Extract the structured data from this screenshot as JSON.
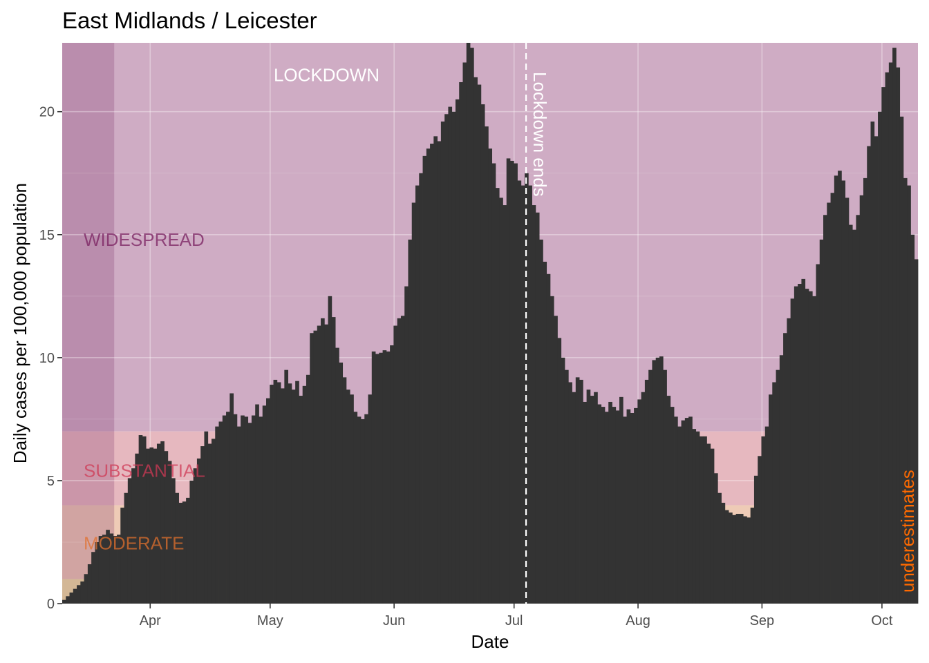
{
  "colors": {
    "bars": "#333333",
    "grid": "#ebebeb",
    "widespread": "#cfacc4",
    "substantial": "#e6b8bf",
    "moderate": "#eecbb6",
    "low": "#f1e5a5",
    "early_shade": "#7a3068",
    "widespread_text": "#7a2060",
    "substantial_text": "#cf3a55",
    "moderate_text": "#e0702e",
    "underestimates_text": "#ff6a00",
    "lockdown_text": "#ffffff"
  },
  "chart_data": {
    "type": "bar",
    "title": "East Midlands / Leicester",
    "xlabel": "Date",
    "ylabel": "Daily cases per 100,000 population",
    "x_start": "2021-03-10",
    "x_end": "2021-10-10",
    "ylim": [
      0,
      22.8
    ],
    "y_ticks": [
      0,
      5,
      10,
      15,
      20
    ],
    "x_ticks": [
      {
        "label": "Apr",
        "date": "2021-04-01"
      },
      {
        "label": "May",
        "date": "2021-05-01"
      },
      {
        "label": "Jun",
        "date": "2021-06-01"
      },
      {
        "label": "Jul",
        "date": "2021-07-01"
      },
      {
        "label": "Aug",
        "date": "2021-08-01"
      },
      {
        "label": "Sep",
        "date": "2021-09-01"
      },
      {
        "label": "Oct",
        "date": "2021-10-01"
      }
    ],
    "bands": [
      {
        "name": "WIDESPREAD",
        "from": 7,
        "to": 22.8
      },
      {
        "name": "SUBSTANTIAL",
        "from": 4,
        "to": 7
      },
      {
        "name": "MODERATE",
        "from": 1,
        "to": 4
      },
      {
        "name": "LOW",
        "from": 0,
        "to": 1
      }
    ],
    "band_labels": [
      "WIDESPREAD",
      "SUBSTANTIAL",
      "MODERATE"
    ],
    "early_shade_until": "2021-03-23",
    "annotations": {
      "lockdown": "LOCKDOWN",
      "lockdown_ends": "Lockdown ends",
      "lockdown_ends_date": "2021-07-04",
      "underestimates": "underestimates"
    },
    "values": [
      0.15,
      0.3,
      0.45,
      0.6,
      0.75,
      0.9,
      1.2,
      1.6,
      2.1,
      2.5,
      2.75,
      2.8,
      3.0,
      2.85,
      2.75,
      2.8,
      3.9,
      4.5,
      5.1,
      5.5,
      6.1,
      6.85,
      6.8,
      6.3,
      6.35,
      6.3,
      6.5,
      6.6,
      6.2,
      5.8,
      5.1,
      4.5,
      4.1,
      4.15,
      4.3,
      5.0,
      5.5,
      5.9,
      6.4,
      7.0,
      6.5,
      6.7,
      7.2,
      7.4,
      7.65,
      7.8,
      8.55,
      7.7,
      7.2,
      7.65,
      7.6,
      7.35,
      7.65,
      8.1,
      7.6,
      8.05,
      8.35,
      8.9,
      9.1,
      9.0,
      8.75,
      9.5,
      8.95,
      8.7,
      9.05,
      8.45,
      8.85,
      9.3,
      11.0,
      11.1,
      11.3,
      11.6,
      11.35,
      12.5,
      11.65,
      10.4,
      9.8,
      9.2,
      8.7,
      8.5,
      7.8,
      7.6,
      7.5,
      7.7,
      8.5,
      10.25,
      10.15,
      10.2,
      10.3,
      10.25,
      10.5,
      11.3,
      11.6,
      11.7,
      12.9,
      14.8,
      16.3,
      17.0,
      17.5,
      18.2,
      18.5,
      18.7,
      19.0,
      18.8,
      19.6,
      19.9,
      20.2,
      20.0,
      20.5,
      21.2,
      22.0,
      23.0,
      22.6,
      21.4,
      21.1,
      20.3,
      19.4,
      18.5,
      17.9,
      16.9,
      16.5,
      16.2,
      18.1,
      18.0,
      17.9,
      17.2,
      17.0,
      17.5,
      17.0,
      16.2,
      15.9,
      14.8,
      13.9,
      13.4,
      12.5,
      11.7,
      10.8,
      10.0,
      9.5,
      9.0,
      8.6,
      9.2,
      9.1,
      8.2,
      8.7,
      8.45,
      8.6,
      8.1,
      8.0,
      7.8,
      8.2,
      8.0,
      7.85,
      8.4,
      7.6,
      7.9,
      7.75,
      7.95,
      8.3,
      8.6,
      9.1,
      9.5,
      9.9,
      10.0,
      10.05,
      9.5,
      8.45,
      8.0,
      7.6,
      7.2,
      7.45,
      7.55,
      7.6,
      7.1,
      7.0,
      6.8,
      6.8,
      6.5,
      6.3,
      5.3,
      4.5,
      4.1,
      3.8,
      3.7,
      3.6,
      3.65,
      3.65,
      3.55,
      3.5,
      3.9,
      5.2,
      6.0,
      6.8,
      7.2,
      8.5,
      9.0,
      9.5,
      10.1,
      11.0,
      11.6,
      12.4,
      12.9,
      13.0,
      13.2,
      12.8,
      12.7,
      12.5,
      13.8,
      14.8,
      15.8,
      16.3,
      16.7,
      17.4,
      17.6,
      17.2,
      16.5,
      15.4,
      15.2,
      15.8,
      16.6,
      17.3,
      18.6,
      19.6,
      19.0,
      20.0,
      21.0,
      21.6,
      22.0,
      22.6,
      21.8,
      19.8,
      17.3,
      17.0,
      15.0,
      14.0
    ]
  }
}
